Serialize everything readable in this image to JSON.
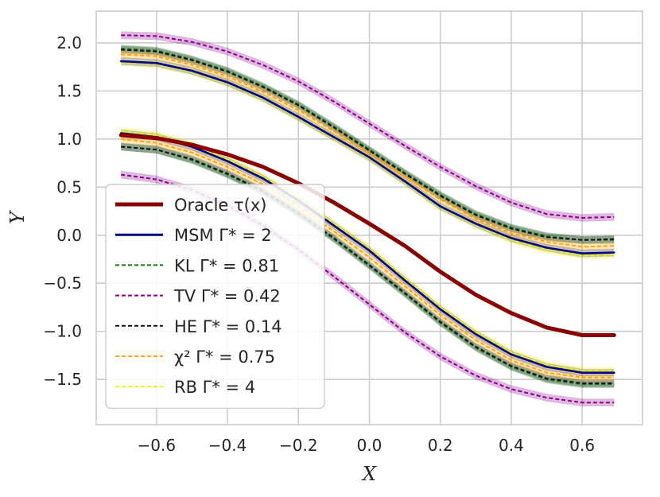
{
  "chart_data": {
    "type": "line",
    "xlabel": "X",
    "ylabel": "Y",
    "xlim": [
      -0.77,
      0.77
    ],
    "ylim": [
      -1.97,
      2.33
    ],
    "xticks": [
      -0.6,
      -0.4,
      -0.2,
      0.0,
      0.2,
      0.4,
      0.6
    ],
    "xtick_labels": [
      "−0.6",
      "−0.4",
      "−0.2",
      "0.0",
      "0.2",
      "0.4",
      "0.6"
    ],
    "yticks": [
      2.0,
      1.5,
      1.0,
      0.5,
      0.0,
      -0.5,
      -1.0,
      -1.5
    ],
    "ytick_labels": [
      "2.0",
      "1.5",
      "1.0",
      "0.5",
      "0.0",
      "−0.5",
      "−1.0",
      "−1.5"
    ],
    "grid": true,
    "legend_position": "lower-left",
    "series": [
      {
        "name": "Oracle τ(x)",
        "color": "#8b0000",
        "style": "solid-thick",
        "x": [
          -0.7,
          -0.6,
          -0.5,
          -0.4,
          -0.3,
          -0.2,
          -0.1,
          0.0,
          0.1,
          0.2,
          0.3,
          0.4,
          0.5,
          0.6,
          0.69
        ],
        "y": [
          1.04,
          1.01,
          0.94,
          0.84,
          0.71,
          0.54,
          0.34,
          0.12,
          -0.11,
          -0.38,
          -0.62,
          -0.81,
          -0.96,
          -1.04,
          -1.04
        ]
      },
      {
        "name": "MSM Γ* = 2",
        "color": "#00008b",
        "style": "solid",
        "bands": [
          {
            "x": [
              -0.7,
              -0.6,
              -0.5,
              -0.4,
              -0.3,
              -0.2,
              -0.1,
              0.0,
              0.1,
              0.2,
              0.3,
              0.4,
              0.5,
              0.6,
              0.69
            ],
            "y": [
              1.81,
              1.79,
              1.71,
              1.59,
              1.43,
              1.23,
              1.02,
              0.81,
              0.56,
              0.3,
              0.12,
              -0.03,
              -0.13,
              -0.19,
              -0.18
            ]
          },
          {
            "x": [
              -0.7,
              -0.6,
              -0.5,
              -0.4,
              -0.3,
              -0.2,
              -0.1,
              0.0,
              0.1,
              0.2,
              0.3,
              0.4,
              0.5,
              0.6,
              0.69
            ],
            "y": [
              1.06,
              1.02,
              0.92,
              0.77,
              0.59,
              0.36,
              0.1,
              -0.16,
              -0.47,
              -0.77,
              -1.03,
              -1.24,
              -1.37,
              -1.43,
              -1.43
            ]
          }
        ]
      },
      {
        "name": "KL Γ* = 0.81",
        "color": "#117a11",
        "style": "dashed",
        "bands": [
          {
            "x": [
              -0.7,
              -0.6,
              -0.5,
              -0.4,
              -0.3,
              -0.2,
              -0.1,
              0.0,
              0.1,
              0.2,
              0.3,
              0.4,
              0.5,
              0.6,
              0.69
            ],
            "y": [
              1.94,
              1.92,
              1.83,
              1.71,
              1.55,
              1.36,
              1.13,
              0.89,
              0.65,
              0.42,
              0.22,
              0.08,
              -0.01,
              -0.05,
              -0.05
            ]
          },
          {
            "x": [
              -0.7,
              -0.6,
              -0.5,
              -0.4,
              -0.3,
              -0.2,
              -0.1,
              0.0,
              0.1,
              0.2,
              0.3,
              0.4,
              0.5,
              0.6,
              0.69
            ],
            "y": [
              0.92,
              0.89,
              0.78,
              0.63,
              0.45,
              0.22,
              -0.04,
              -0.32,
              -0.61,
              -0.91,
              -1.17,
              -1.37,
              -1.5,
              -1.55,
              -1.55
            ]
          }
        ]
      },
      {
        "name": "TV Γ* = 0.42",
        "color": "#8b008b",
        "style": "dashed",
        "bands": [
          {
            "x": [
              -0.7,
              -0.6,
              -0.5,
              -0.4,
              -0.3,
              -0.2,
              -0.1,
              0.0,
              0.1,
              0.2,
              0.3,
              0.4,
              0.5,
              0.6,
              0.69
            ],
            "y": [
              2.08,
              2.07,
              2.01,
              1.91,
              1.77,
              1.6,
              1.39,
              1.16,
              0.93,
              0.71,
              0.51,
              0.34,
              0.22,
              0.18,
              0.19
            ]
          },
          {
            "x": [
              -0.7,
              -0.6,
              -0.5,
              -0.4,
              -0.3,
              -0.2,
              -0.1,
              0.0,
              0.1,
              0.2,
              0.3,
              0.4,
              0.5,
              0.6,
              0.69
            ],
            "y": [
              0.63,
              0.58,
              0.47,
              0.31,
              0.1,
              -0.15,
              -0.43,
              -0.72,
              -1.01,
              -1.26,
              -1.46,
              -1.6,
              -1.69,
              -1.74,
              -1.74
            ]
          }
        ]
      },
      {
        "name": "HE Γ* = 0.14",
        "color": "#111111",
        "style": "dashed",
        "bands": [
          {
            "x": [
              -0.7,
              -0.6,
              -0.5,
              -0.4,
              -0.3,
              -0.2,
              -0.1,
              0.0,
              0.1,
              0.2,
              0.3,
              0.4,
              0.5,
              0.6,
              0.69
            ],
            "y": [
              1.93,
              1.91,
              1.82,
              1.7,
              1.54,
              1.35,
              1.12,
              0.88,
              0.64,
              0.41,
              0.21,
              0.07,
              -0.02,
              -0.05,
              -0.04
            ]
          },
          {
            "x": [
              -0.7,
              -0.6,
              -0.5,
              -0.4,
              -0.3,
              -0.2,
              -0.1,
              0.0,
              0.1,
              0.2,
              0.3,
              0.4,
              0.5,
              0.6,
              0.69
            ],
            "y": [
              0.92,
              0.89,
              0.79,
              0.64,
              0.46,
              0.23,
              -0.03,
              -0.31,
              -0.6,
              -0.9,
              -1.16,
              -1.36,
              -1.49,
              -1.54,
              -1.54
            ]
          }
        ]
      },
      {
        "name": "χ² Γ* = 0.75",
        "color": "#ffa500",
        "style": "dashed",
        "bands": [
          {
            "x": [
              -0.7,
              -0.6,
              -0.5,
              -0.4,
              -0.3,
              -0.2,
              -0.1,
              0.0,
              0.1,
              0.2,
              0.3,
              0.4,
              0.5,
              0.6,
              0.69
            ],
            "y": [
              1.88,
              1.86,
              1.77,
              1.65,
              1.49,
              1.3,
              1.08,
              0.85,
              0.61,
              0.37,
              0.17,
              0.02,
              -0.07,
              -0.12,
              -0.11
            ]
          },
          {
            "x": [
              -0.7,
              -0.6,
              -0.5,
              -0.4,
              -0.3,
              -0.2,
              -0.1,
              0.0,
              0.1,
              0.2,
              0.3,
              0.4,
              0.5,
              0.6,
              0.69
            ],
            "y": [
              1.0,
              0.96,
              0.86,
              0.71,
              0.53,
              0.3,
              0.04,
              -0.23,
              -0.53,
              -0.83,
              -1.09,
              -1.3,
              -1.43,
              -1.48,
              -1.48
            ]
          }
        ]
      },
      {
        "name": "RB Γ* = 4",
        "color": "#f5f500",
        "style": "dashed",
        "bands": [
          {
            "x": [
              -0.7,
              -0.6,
              -0.5,
              -0.4,
              -0.3,
              -0.2,
              -0.1,
              0.0,
              0.1,
              0.2,
              0.3,
              0.4,
              0.5,
              0.6,
              0.69
            ],
            "y": [
              1.8,
              1.78,
              1.7,
              1.58,
              1.42,
              1.22,
              1.01,
              0.8,
              0.55,
              0.29,
              0.11,
              -0.05,
              -0.15,
              -0.21,
              -0.2
            ]
          },
          {
            "x": [
              -0.7,
              -0.6,
              -0.5,
              -0.4,
              -0.3,
              -0.2,
              -0.1,
              0.0,
              0.1,
              0.2,
              0.3,
              0.4,
              0.5,
              0.6,
              0.69
            ],
            "y": [
              1.08,
              1.04,
              0.94,
              0.79,
              0.61,
              0.38,
              0.12,
              -0.14,
              -0.45,
              -0.75,
              -1.01,
              -1.22,
              -1.35,
              -1.41,
              -1.41
            ]
          }
        ]
      }
    ],
    "legend": [
      {
        "text": "Oracle τ(x)",
        "series": 0
      },
      {
        "text": "MSM Γ* = 2",
        "series": 1
      },
      {
        "text": "KL Γ* = 0.81",
        "series": 2
      },
      {
        "text": "TV Γ* = 0.42",
        "series": 3
      },
      {
        "text": "HE Γ* = 0.14",
        "series": 4
      },
      {
        "text": "χ² Γ* = 0.75",
        "series": 5
      },
      {
        "text": "RB Γ* = 4",
        "series": 6
      }
    ]
  }
}
